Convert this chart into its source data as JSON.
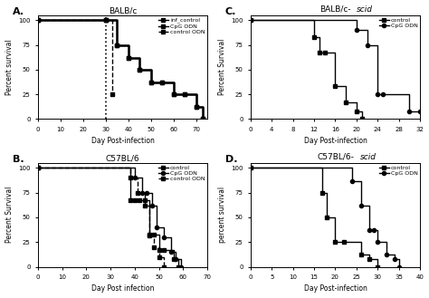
{
  "panel_A": {
    "title": "BALB/c",
    "xlabel": "Day Post-infection",
    "ylabel": "Percent survival",
    "xlim": [
      0,
      75
    ],
    "ylim": [
      0,
      105
    ],
    "xticks": [
      0,
      10,
      20,
      30,
      40,
      50,
      60,
      70
    ],
    "yticks": [
      0,
      25,
      50,
      75,
      100
    ],
    "vline_x": 30,
    "series": [
      {
        "label": "inf_control",
        "x": [
          0,
          30,
          35,
          40,
          45,
          50,
          55,
          60,
          65,
          70,
          73
        ],
        "y": [
          100,
          100,
          75,
          62,
          50,
          37,
          37,
          25,
          25,
          12,
          0
        ],
        "linestyle": "-",
        "marker": "s",
        "markersize": 3,
        "color": "#000000",
        "linewidth": 1.0
      },
      {
        "label": "CpG ODN",
        "x": [
          0,
          30,
          35,
          40,
          45,
          50,
          55,
          60,
          65,
          70,
          73
        ],
        "y": [
          100,
          100,
          75,
          62,
          50,
          37,
          37,
          25,
          25,
          12,
          0
        ],
        "linestyle": "-",
        "marker": "s",
        "markersize": 3,
        "color": "#000000",
        "linewidth": 1.8
      },
      {
        "label": "control ODN",
        "x": [
          0,
          30,
          33
        ],
        "y": [
          100,
          100,
          25
        ],
        "linestyle": "--",
        "marker": "s",
        "markersize": 3,
        "color": "#000000",
        "linewidth": 1.0
      }
    ],
    "legend_loc": "upper right"
  },
  "panel_B": {
    "title": "C57BL/6",
    "xlabel": "Day Post infection",
    "ylabel": "Percent Survival",
    "xlim": [
      0,
      70
    ],
    "ylim": [
      0,
      105
    ],
    "xticks": [
      0,
      10,
      20,
      30,
      40,
      50,
      60,
      70
    ],
    "yticks": [
      0,
      25,
      50,
      75,
      100
    ],
    "series": [
      {
        "label": "control",
        "x": [
          0,
          38,
          40,
          42,
          44,
          46,
          48,
          50,
          52,
          56,
          58
        ],
        "y": [
          100,
          67,
          67,
          67,
          67,
          33,
          33,
          17,
          17,
          8,
          0
        ],
        "linestyle": "-",
        "marker": "s",
        "markersize": 3,
        "color": "#000000",
        "linewidth": 1.0
      },
      {
        "label": "CpG ODN",
        "x": [
          0,
          40,
          43,
          45,
          47,
          49,
          52,
          55,
          57,
          59
        ],
        "y": [
          100,
          90,
          75,
          75,
          62,
          40,
          30,
          15,
          8,
          0
        ],
        "linestyle": "-",
        "marker": "o",
        "markersize": 3,
        "color": "#000000",
        "linewidth": 1.0
      },
      {
        "label": "control ODN",
        "x": [
          0,
          38,
          41,
          44,
          46,
          48,
          50,
          52
        ],
        "y": [
          100,
          90,
          75,
          62,
          32,
          20,
          10,
          0
        ],
        "linestyle": "--",
        "marker": "s",
        "markersize": 3,
        "color": "#000000",
        "linewidth": 1.0
      }
    ],
    "legend_loc": "upper right"
  },
  "panel_C": {
    "title": "BALB/c-scid",
    "title_parts": [
      "BALB/c-",
      "scid"
    ],
    "xlabel": "Day Post-infection",
    "ylabel": "Percent Survival",
    "xlim": [
      0,
      32
    ],
    "ylim": [
      0,
      105
    ],
    "xticks": [
      0,
      4,
      8,
      12,
      16,
      20,
      24,
      28,
      32
    ],
    "yticks": [
      0,
      25,
      50,
      75,
      100
    ],
    "series": [
      {
        "label": "control",
        "x": [
          0,
          12,
          13,
          14,
          16,
          18,
          20,
          21
        ],
        "y": [
          100,
          83,
          67,
          67,
          33,
          17,
          8,
          0
        ],
        "linestyle": "-",
        "marker": "s",
        "markersize": 3,
        "color": "#000000",
        "linewidth": 1.0
      },
      {
        "label": "CpG ODN",
        "x": [
          0,
          20,
          22,
          24,
          25,
          30,
          32
        ],
        "y": [
          100,
          90,
          75,
          25,
          25,
          8,
          8
        ],
        "linestyle": "-",
        "marker": "o",
        "markersize": 3,
        "color": "#000000",
        "linewidth": 1.0
      }
    ],
    "legend_loc": "upper right"
  },
  "panel_D": {
    "title": "C57BL/6-scid",
    "title_parts": [
      "C57BL/6-",
      "scid"
    ],
    "xlabel": "Day Post-infection",
    "ylabel": "percent survival",
    "xlim": [
      0,
      40
    ],
    "ylim": [
      0,
      105
    ],
    "xticks": [
      0,
      5,
      10,
      15,
      20,
      25,
      30,
      35,
      40
    ],
    "yticks": [
      0,
      25,
      50,
      75,
      100
    ],
    "series": [
      {
        "label": "control",
        "x": [
          0,
          17,
          18,
          20,
          22,
          26,
          28,
          30
        ],
        "y": [
          100,
          75,
          50,
          25,
          25,
          12,
          8,
          0
        ],
        "linestyle": "-",
        "marker": "s",
        "markersize": 3,
        "color": "#000000",
        "linewidth": 1.0
      },
      {
        "label": "CpG ODN",
        "x": [
          0,
          24,
          26,
          28,
          29,
          30,
          32,
          34,
          35
        ],
        "y": [
          100,
          87,
          62,
          37,
          37,
          25,
          12,
          8,
          0
        ],
        "linestyle": "-",
        "marker": "o",
        "markersize": 3,
        "color": "#000000",
        "linewidth": 1.0
      }
    ],
    "legend_loc": "upper right"
  }
}
